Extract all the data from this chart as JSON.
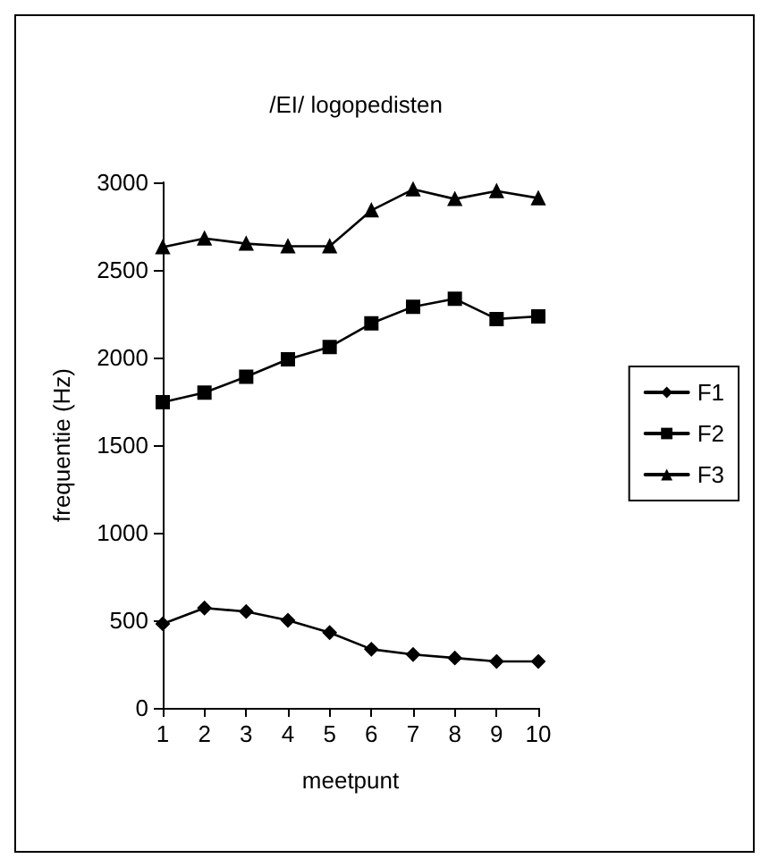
{
  "chart_data": {
    "type": "line",
    "title": "/EI/ logopedisten",
    "xlabel": "meetpunt",
    "ylabel": "frequentie (Hz)",
    "categories": [
      "1",
      "2",
      "3",
      "4",
      "5",
      "6",
      "7",
      "8",
      "9",
      "10"
    ],
    "series": [
      {
        "name": "F1",
        "color": "#000000",
        "marker": "diamond",
        "values": [
          480,
          570,
          550,
          500,
          430,
          335,
          305,
          285,
          265,
          265
        ]
      },
      {
        "name": "F2",
        "color": "#000000",
        "marker": "square",
        "values": [
          1745,
          1800,
          1890,
          1990,
          2060,
          2195,
          2290,
          2335,
          2220,
          2235
        ]
      },
      {
        "name": "F3",
        "color": "#000000",
        "marker": "triangle",
        "values": [
          2630,
          2680,
          2650,
          2635,
          2635,
          2840,
          2960,
          2905,
          2950,
          2910
        ]
      }
    ],
    "ylim": [
      0,
      3000
    ],
    "yticks": [
      0,
      500,
      1000,
      1500,
      2000,
      2500,
      3000
    ],
    "grid": false,
    "legend": "right",
    "line_style": "solid"
  }
}
